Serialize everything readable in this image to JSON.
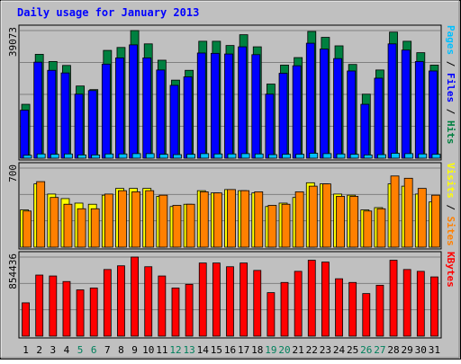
{
  "chart_data": [
    {
      "type": "bar",
      "title": "Daily usage for January 2013",
      "panel": "hits-files-pages",
      "ylabel_parts": [
        {
          "text": "Pages",
          "color": "#00c0ff"
        },
        {
          "text": " / ",
          "color": "#000000"
        },
        {
          "text": "Files",
          "color": "#0000ff"
        },
        {
          "text": " / ",
          "color": "#000000"
        },
        {
          "text": "Hits",
          "color": "#008040"
        }
      ],
      "ymax_label": "39073",
      "ylim": [
        0,
        39073
      ],
      "grid": true,
      "categories": [
        "1",
        "2",
        "3",
        "4",
        "5",
        "6",
        "7",
        "8",
        "9",
        "10",
        "11",
        "12",
        "13",
        "14",
        "15",
        "16",
        "17",
        "18",
        "19",
        "20",
        "21",
        "22",
        "23",
        "24",
        "25",
        "26",
        "27",
        "28",
        "29",
        "30",
        "31"
      ],
      "series": [
        {
          "name": "Hits",
          "color": "#008040",
          "values": [
            16500,
            31800,
            29600,
            28400,
            22100,
            21000,
            33000,
            33900,
            39073,
            35000,
            30000,
            23900,
            26900,
            35800,
            35800,
            34500,
            37800,
            34100,
            22700,
            28500,
            30800,
            38800,
            37000,
            34400,
            28700,
            19600,
            27000,
            38600,
            35800,
            32300,
            28500
          ]
        },
        {
          "name": "Files",
          "color": "#0000ff",
          "values": [
            14700,
            29400,
            26900,
            26100,
            19600,
            20700,
            28800,
            30700,
            34700,
            30700,
            27000,
            22300,
            24900,
            32200,
            32100,
            31900,
            34100,
            31700,
            19600,
            26000,
            28300,
            35200,
            33400,
            30500,
            26700,
            16500,
            24500,
            35000,
            33100,
            29600,
            26700
          ]
        },
        {
          "name": "Pages",
          "color": "#00c0ff",
          "values": [
            900,
            1300,
            1200,
            1300,
            1000,
            1000,
            1300,
            1300,
            1400,
            1400,
            1200,
            1100,
            1200,
            1400,
            1300,
            1300,
            1400,
            1300,
            1100,
            1200,
            1200,
            1500,
            1400,
            1300,
            1200,
            1000,
            1100,
            1500,
            1400,
            1300,
            1200
          ]
        }
      ]
    },
    {
      "type": "bar",
      "panel": "visits-sites",
      "ylabel_parts": [
        {
          "text": "Visits",
          "color": "#ffff00"
        },
        {
          "text": " / ",
          "color": "#000000"
        },
        {
          "text": "Sites",
          "color": "#ff8000"
        }
      ],
      "ymax_label": "700",
      "ylim": [
        0,
        700
      ],
      "grid": true,
      "categories": [
        "1",
        "2",
        "3",
        "4",
        "5",
        "6",
        "7",
        "8",
        "9",
        "10",
        "11",
        "12",
        "13",
        "14",
        "15",
        "16",
        "17",
        "18",
        "19",
        "20",
        "21",
        "22",
        "23",
        "24",
        "25",
        "26",
        "27",
        "28",
        "29",
        "30",
        "31"
      ],
      "series": [
        {
          "name": "Visits",
          "color": "#ffff00",
          "values": [
            330,
            560,
            470,
            430,
            390,
            380,
            460,
            520,
            520,
            520,
            450,
            360,
            380,
            500,
            480,
            510,
            500,
            480,
            360,
            390,
            440,
            570,
            560,
            470,
            460,
            330,
            350,
            560,
            540,
            470,
            400
          ]
        },
        {
          "name": "Sites",
          "color": "#ff8000",
          "values": [
            320,
            580,
            440,
            380,
            340,
            340,
            470,
            500,
            490,
            500,
            460,
            370,
            380,
            490,
            480,
            510,
            500,
            490,
            370,
            380,
            490,
            540,
            560,
            450,
            450,
            320,
            340,
            630,
            610,
            520,
            460
          ]
        }
      ]
    },
    {
      "type": "bar",
      "panel": "kbytes",
      "ylabel_parts": [
        {
          "text": "KBytes",
          "color": "#ff0000"
        }
      ],
      "ymax_label": "854436",
      "ylim": [
        0,
        854436
      ],
      "grid": true,
      "categories": [
        "1",
        "2",
        "3",
        "4",
        "5",
        "6",
        "7",
        "8",
        "9",
        "10",
        "11",
        "12",
        "13",
        "14",
        "15",
        "16",
        "17",
        "18",
        "19",
        "20",
        "21",
        "22",
        "23",
        "24",
        "25",
        "26",
        "27",
        "28",
        "29",
        "30",
        "31"
      ],
      "series": [
        {
          "name": "KBytes",
          "color": "#ff0000",
          "values": [
            360000,
            660000,
            650000,
            590000,
            500000,
            520000,
            720000,
            760000,
            854436,
            750000,
            650000,
            520000,
            560000,
            790000,
            790000,
            750000,
            790000,
            710000,
            470000,
            580000,
            700000,
            820000,
            800000,
            620000,
            580000,
            460000,
            550000,
            820000,
            720000,
            700000,
            640000
          ]
        }
      ]
    }
  ],
  "x_axis": {
    "weekend_days": [
      "5",
      "6",
      "12",
      "13",
      "19",
      "20",
      "26",
      "27"
    ],
    "weekday_color": "#000000",
    "weekend_color": "#00805c"
  }
}
